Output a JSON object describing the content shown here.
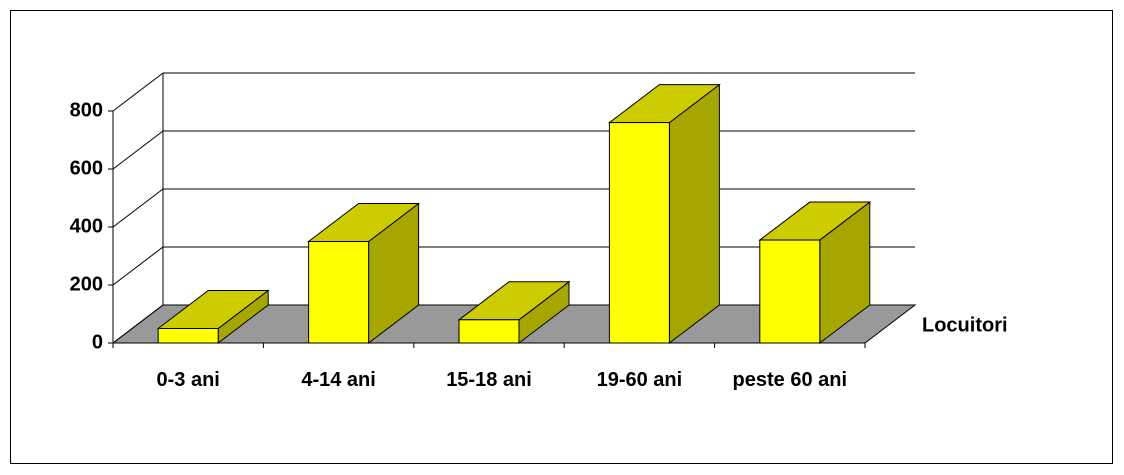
{
  "chart_data": {
    "type": "bar3d",
    "categories": [
      "0-3 ani",
      "4-14 ani",
      "15-18 ani",
      "19-60 ani",
      "peste 60 ani"
    ],
    "series": [
      {
        "name": "Locuitori",
        "color": "#ffff00",
        "values": [
          50,
          350,
          80,
          760,
          355
        ]
      }
    ],
    "ylim": [
      0,
      800
    ],
    "yticks": [
      0,
      200,
      400,
      600,
      800
    ],
    "grid": true,
    "legend": "right"
  }
}
